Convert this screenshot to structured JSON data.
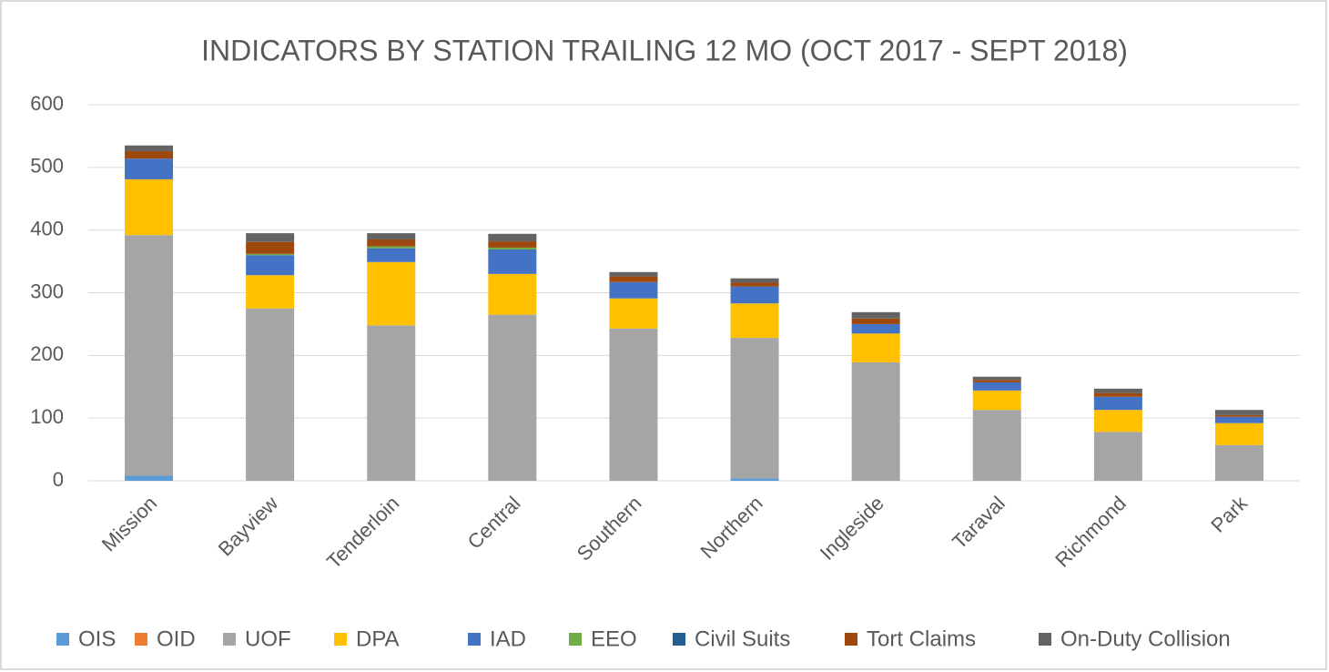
{
  "chart_data": {
    "type": "stacked_bar",
    "title": "INDICATORS BY STATION TRAILING 12 MO (OCT 2017 - SEPT 2018)",
    "categories": [
      "Mission",
      "Bayview",
      "Tenderloin",
      "Central",
      "Southern",
      "Northern",
      "Ingleside",
      "Taraval",
      "Richmond",
      "Park"
    ],
    "series": [
      {
        "name": "OIS",
        "color": "#5b9bd5",
        "values": [
          8,
          0,
          0,
          0,
          0,
          4,
          0,
          0,
          0,
          0
        ]
      },
      {
        "name": "OID",
        "color": "#ed7d31",
        "values": [
          0,
          0,
          0,
          0,
          0,
          0,
          0,
          0,
          0,
          0
        ]
      },
      {
        "name": "UOF",
        "color": "#a5a5a5",
        "values": [
          384,
          275,
          248,
          265,
          243,
          224,
          189,
          113,
          78,
          57
        ]
      },
      {
        "name": "DPA",
        "color": "#ffc000",
        "values": [
          89,
          53,
          101,
          65,
          48,
          55,
          46,
          31,
          35,
          35
        ]
      },
      {
        "name": "IAD",
        "color": "#4472c4",
        "values": [
          33,
          32,
          22,
          39,
          26,
          27,
          15,
          13,
          21,
          10
        ]
      },
      {
        "name": "EEO",
        "color": "#70ad47",
        "values": [
          0,
          2,
          3,
          3,
          0,
          0,
          0,
          0,
          0,
          0
        ]
      },
      {
        "name": "Civil Suits",
        "color": "#255e91",
        "values": [
          0,
          0,
          0,
          0,
          0,
          0,
          0,
          0,
          0,
          0
        ]
      },
      {
        "name": "Tort Claims",
        "color": "#9e480e",
        "values": [
          12,
          19,
          11,
          10,
          9,
          6,
          9,
          4,
          6,
          3
        ]
      },
      {
        "name": "On-Duty Collision",
        "color": "#636363",
        "values": [
          9,
          14,
          10,
          12,
          7,
          7,
          10,
          5,
          7,
          8
        ]
      }
    ],
    "ylim": [
      0,
      600
    ],
    "yticks": [
      0,
      100,
      200,
      300,
      400,
      500,
      600
    ],
    "grid": true,
    "legend": "bottom"
  }
}
